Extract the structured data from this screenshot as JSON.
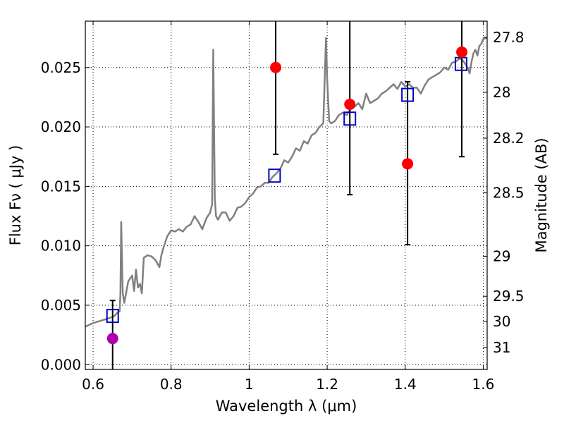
{
  "chart_data": {
    "type": "scatter",
    "xlabel": "Wavelength  λ (μm)",
    "ylabel": "Flux  Fν  ( μJy )",
    "y2label": "Magnitude (AB)",
    "xlim": [
      0.58,
      1.61
    ],
    "ylim": [
      -0.0004,
      0.0289
    ],
    "grid": true,
    "x_ticks": [
      {
        "value": 0.6,
        "label": "0.6"
      },
      {
        "value": 0.8,
        "label": "0.8"
      },
      {
        "value": 1.0,
        "label": "1"
      },
      {
        "value": 1.2,
        "label": "1.2"
      },
      {
        "value": 1.4,
        "label": "1.4"
      },
      {
        "value": 1.6,
        "label": "1.6"
      }
    ],
    "y_ticks": [
      {
        "value": 0.0,
        "label": "0.000"
      },
      {
        "value": 0.005,
        "label": "0.005"
      },
      {
        "value": 0.01,
        "label": "0.010"
      },
      {
        "value": 0.015,
        "label": "0.015"
      },
      {
        "value": 0.02,
        "label": "0.020"
      },
      {
        "value": 0.025,
        "label": "0.025"
      }
    ],
    "mag_ticks": [
      {
        "mag": 27.8,
        "label": "27.8"
      },
      {
        "mag": 28.0,
        "label": "28"
      },
      {
        "mag": 28.2,
        "label": "28.2"
      },
      {
        "mag": 28.5,
        "label": "28.5"
      },
      {
        "mag": 29.0,
        "label": "29"
      },
      {
        "mag": 29.5,
        "label": "29.5"
      },
      {
        "mag": 30.0,
        "label": "30"
      },
      {
        "mag": 31.0,
        "label": "31"
      }
    ],
    "model_spectrum": {
      "color": "#808080",
      "points": [
        [
          0.58,
          0.0032
        ],
        [
          0.6,
          0.0035
        ],
        [
          0.62,
          0.0037
        ],
        [
          0.64,
          0.0039
        ],
        [
          0.655,
          0.0041
        ],
        [
          0.66,
          0.0043
        ],
        [
          0.668,
          0.0045
        ],
        [
          0.67,
          0.006
        ],
        [
          0.672,
          0.012
        ],
        [
          0.674,
          0.009
        ],
        [
          0.676,
          0.006
        ],
        [
          0.68,
          0.0052
        ],
        [
          0.69,
          0.007
        ],
        [
          0.7,
          0.0075
        ],
        [
          0.705,
          0.0062
        ],
        [
          0.71,
          0.008
        ],
        [
          0.715,
          0.0065
        ],
        [
          0.72,
          0.0068
        ],
        [
          0.725,
          0.006
        ],
        [
          0.73,
          0.009
        ],
        [
          0.74,
          0.0092
        ],
        [
          0.75,
          0.0091
        ],
        [
          0.76,
          0.0088
        ],
        [
          0.77,
          0.0082
        ],
        [
          0.775,
          0.0092
        ],
        [
          0.78,
          0.0098
        ],
        [
          0.79,
          0.0108
        ],
        [
          0.8,
          0.0113
        ],
        [
          0.81,
          0.0112
        ],
        [
          0.82,
          0.0114
        ],
        [
          0.83,
          0.0112
        ],
        [
          0.84,
          0.0116
        ],
        [
          0.85,
          0.0118
        ],
        [
          0.86,
          0.0125
        ],
        [
          0.87,
          0.012
        ],
        [
          0.88,
          0.0114
        ],
        [
          0.89,
          0.0123
        ],
        [
          0.9,
          0.0128
        ],
        [
          0.905,
          0.0135
        ],
        [
          0.908,
          0.0265
        ],
        [
          0.912,
          0.014
        ],
        [
          0.915,
          0.0125
        ],
        [
          0.92,
          0.0122
        ],
        [
          0.93,
          0.0128
        ],
        [
          0.94,
          0.0128
        ],
        [
          0.95,
          0.0121
        ],
        [
          0.96,
          0.0125
        ],
        [
          0.97,
          0.0132
        ],
        [
          0.98,
          0.0133
        ],
        [
          0.99,
          0.0136
        ],
        [
          1.0,
          0.0141
        ],
        [
          1.01,
          0.0144
        ],
        [
          1.02,
          0.0149
        ],
        [
          1.03,
          0.015
        ],
        [
          1.04,
          0.0153
        ],
        [
          1.05,
          0.0153
        ],
        [
          1.06,
          0.0158
        ],
        [
          1.07,
          0.0161
        ],
        [
          1.08,
          0.0165
        ],
        [
          1.09,
          0.0172
        ],
        [
          1.1,
          0.017
        ],
        [
          1.11,
          0.0175
        ],
        [
          1.12,
          0.0182
        ],
        [
          1.13,
          0.018
        ],
        [
          1.14,
          0.0188
        ],
        [
          1.15,
          0.0186
        ],
        [
          1.16,
          0.0193
        ],
        [
          1.17,
          0.0195
        ],
        [
          1.18,
          0.02
        ],
        [
          1.19,
          0.0203
        ],
        [
          1.197,
          0.0275
        ],
        [
          1.2,
          0.024
        ],
        [
          1.205,
          0.0205
        ],
        [
          1.21,
          0.0203
        ],
        [
          1.22,
          0.0205
        ],
        [
          1.23,
          0.021
        ],
        [
          1.24,
          0.0212
        ],
        [
          1.25,
          0.021
        ],
        [
          1.26,
          0.0215
        ],
        [
          1.27,
          0.0217
        ],
        [
          1.28,
          0.022
        ],
        [
          1.29,
          0.0215
        ],
        [
          1.3,
          0.0228
        ],
        [
          1.31,
          0.022
        ],
        [
          1.32,
          0.0222
        ],
        [
          1.33,
          0.0224
        ],
        [
          1.34,
          0.0228
        ],
        [
          1.35,
          0.023
        ],
        [
          1.36,
          0.0233
        ],
        [
          1.37,
          0.0236
        ],
        [
          1.38,
          0.0232
        ],
        [
          1.39,
          0.0238
        ],
        [
          1.4,
          0.0234
        ],
        [
          1.41,
          0.0236
        ],
        [
          1.42,
          0.0233
        ],
        [
          1.43,
          0.0233
        ],
        [
          1.44,
          0.0228
        ],
        [
          1.45,
          0.0235
        ],
        [
          1.46,
          0.024
        ],
        [
          1.47,
          0.0242
        ],
        [
          1.48,
          0.0244
        ],
        [
          1.49,
          0.0246
        ],
        [
          1.5,
          0.025
        ],
        [
          1.51,
          0.0248
        ],
        [
          1.52,
          0.0254
        ],
        [
          1.53,
          0.0255
        ],
        [
          1.54,
          0.0258
        ],
        [
          1.55,
          0.0255
        ],
        [
          1.56,
          0.025
        ],
        [
          1.565,
          0.0245
        ],
        [
          1.57,
          0.0255
        ],
        [
          1.575,
          0.0262
        ],
        [
          1.58,
          0.0265
        ],
        [
          1.585,
          0.026
        ],
        [
          1.59,
          0.0268
        ],
        [
          1.595,
          0.027
        ],
        [
          1.6,
          0.0274
        ],
        [
          1.61,
          0.0275
        ]
      ]
    },
    "model_points": [
      {
        "x": 0.65,
        "y": 0.0041,
        "color": "#0000cc"
      },
      {
        "x": 1.065,
        "y": 0.0159,
        "color": "#0000cc"
      },
      {
        "x": 1.258,
        "y": 0.0207,
        "color": "#0000cc"
      },
      {
        "x": 1.406,
        "y": 0.0227,
        "color": "#0000cc"
      },
      {
        "x": 1.543,
        "y": 0.0253,
        "color": "#0000cc"
      }
    ],
    "observed_points": [
      {
        "x": 0.65,
        "y": 0.0022,
        "yerr_low": -0.0004,
        "yerr_high": 0.0054,
        "color": "#b000b0"
      },
      {
        "x": 1.068,
        "y": 0.025,
        "yerr_low": 0.0177,
        "yerr_high": 0.0289,
        "color": "#ff0000"
      },
      {
        "x": 1.258,
        "y": 0.0219,
        "yerr_low": 0.0143,
        "yerr_high": 0.0289,
        "color": "#ff0000"
      },
      {
        "x": 1.406,
        "y": 0.0169,
        "yerr_low": 0.0101,
        "yerr_high": 0.0238,
        "color": "#ff0000"
      },
      {
        "x": 1.545,
        "y": 0.0263,
        "yerr_low": 0.0175,
        "yerr_high": 0.0289,
        "color": "#ff0000"
      }
    ]
  }
}
